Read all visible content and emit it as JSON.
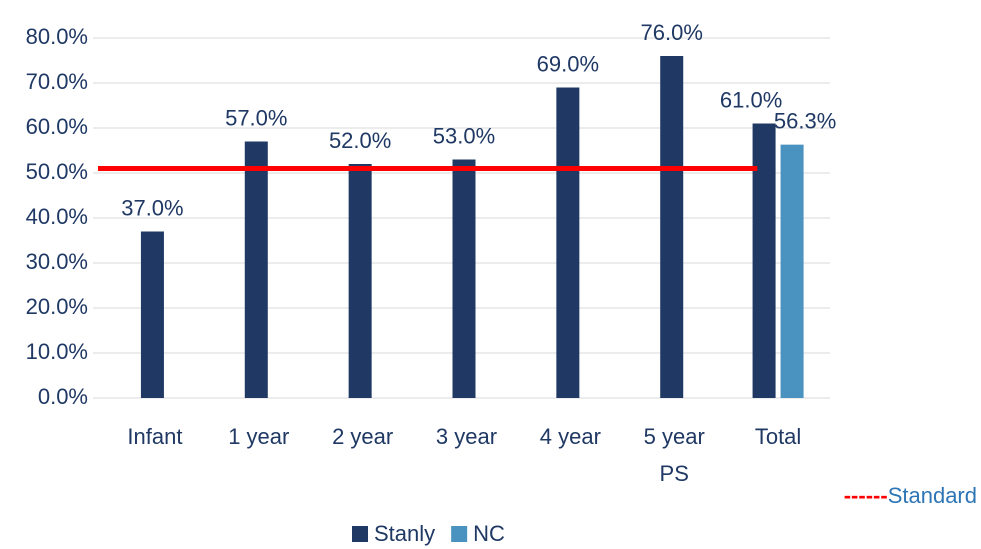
{
  "chart_data": {
    "type": "bar",
    "categories": [
      "Infant",
      "1 year",
      "2 year",
      "3 year",
      "4 year",
      "5 year\nPS",
      "Total"
    ],
    "series": [
      {
        "name": "Stanly",
        "color": "#1f3864",
        "values": [
          37,
          57,
          52,
          53,
          69,
          76,
          61
        ],
        "value_labels": [
          "37.0%",
          "57.0%",
          "52.0%",
          "53.0%",
          "69.0%",
          "76.0%",
          "61.0%"
        ]
      },
      {
        "name": "NC",
        "color": "#4a93c0",
        "values": [
          null,
          null,
          null,
          null,
          null,
          null,
          56.3
        ],
        "value_labels": [
          null,
          null,
          null,
          null,
          null,
          null,
          "56.3%"
        ]
      }
    ],
    "standard_line": {
      "name": "Standard",
      "marker": "------",
      "value": 51,
      "color": "#ff0000"
    },
    "ylim": [
      0,
      80
    ],
    "yticks": [
      {
        "value": 0,
        "label": "0.0%"
      },
      {
        "value": 10,
        "label": "10.0%"
      },
      {
        "value": 20,
        "label": "20.0%"
      },
      {
        "value": 30,
        "label": "30.0%"
      },
      {
        "value": 40,
        "label": "40.0%"
      },
      {
        "value": 50,
        "label": "50.0%"
      },
      {
        "value": 60,
        "label": "60.0%"
      },
      {
        "value": 70,
        "label": "70.0%"
      },
      {
        "value": 80,
        "label": "80.0%"
      }
    ],
    "grid": true
  }
}
